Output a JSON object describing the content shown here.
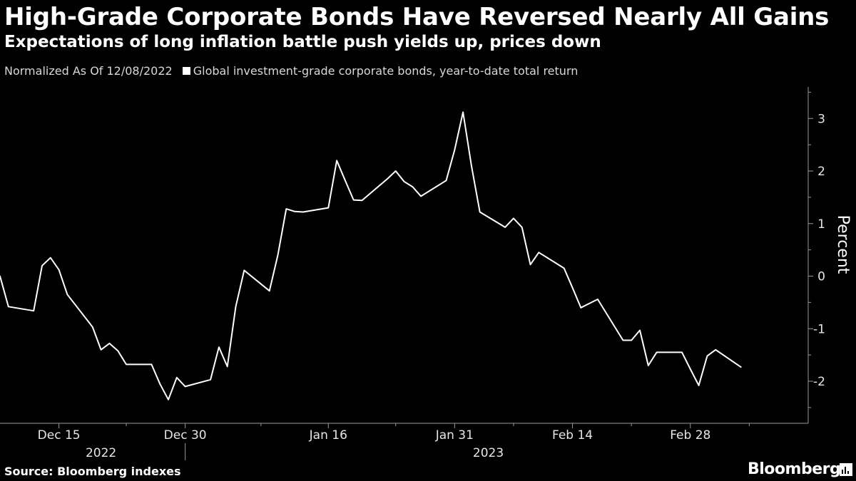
{
  "header": {
    "title": "High-Grade Corporate Bonds Have Reversed Nearly All Gains",
    "subtitle": "Expectations of long inflation battle push yields up, prices down"
  },
  "legend": {
    "note": "Normalized As Of 12/08/2022",
    "series_label": "Global investment-grade corporate bonds, year-to-date total return"
  },
  "footer": {
    "source": "Source: Bloomberg indexes",
    "brand": "Bloomberg"
  },
  "colors": {
    "background": "#000000",
    "line": "#ffffff",
    "text": "#ffffff",
    "muted": "#d8d8d8"
  },
  "chart_data": {
    "type": "line",
    "title": "High-Grade Corporate Bonds Have Reversed Nearly All Gains",
    "subtitle": "Expectations of long inflation battle push yields up, prices down",
    "ylabel": "Percent",
    "xlabel": "",
    "ylim": [
      -2.8,
      3.6
    ],
    "xlim": [
      "2022-12-08",
      "2023-03-14"
    ],
    "y_ticks": [
      -2,
      -1,
      0,
      1,
      2,
      3
    ],
    "x_ticks": [
      {
        "date": "2022-12-15",
        "label": "Dec 15"
      },
      {
        "date": "2022-12-30",
        "label": "Dec 30"
      },
      {
        "date": "2023-01-16",
        "label": "Jan 16"
      },
      {
        "date": "2023-01-31",
        "label": "Jan 31"
      },
      {
        "date": "2023-02-14",
        "label": "Feb 14"
      },
      {
        "date": "2023-02-28",
        "label": "Feb 28"
      }
    ],
    "minor_x_ticks": [
      "2022-12-23",
      "2023-01-08",
      "2023-01-24",
      "2023-02-07",
      "2023-02-21",
      "2023-03-07"
    ],
    "years": [
      {
        "label": "2022",
        "center": "2022-12-20"
      },
      {
        "label": "2023",
        "center": "2023-02-04"
      }
    ],
    "year_divider": "2022-12-30",
    "grid": false,
    "legend_position": "top-left",
    "series": [
      {
        "name": "Global investment-grade corporate bonds, year-to-date total return",
        "color": "#ffffff",
        "points": [
          [
            "2022-12-08",
            0.0
          ],
          [
            "2022-12-09",
            -0.58
          ],
          [
            "2022-12-12",
            -0.66
          ],
          [
            "2022-12-13",
            0.2
          ],
          [
            "2022-12-14",
            0.35
          ],
          [
            "2022-12-15",
            0.12
          ],
          [
            "2022-12-16",
            -0.35
          ],
          [
            "2022-12-19",
            -0.97
          ],
          [
            "2022-12-20",
            -1.4
          ],
          [
            "2022-12-21",
            -1.28
          ],
          [
            "2022-12-22",
            -1.42
          ],
          [
            "2022-12-23",
            -1.68
          ],
          [
            "2022-12-26",
            -1.68
          ],
          [
            "2022-12-27",
            -2.05
          ],
          [
            "2022-12-28",
            -2.35
          ],
          [
            "2022-12-29",
            -1.93
          ],
          [
            "2022-12-30",
            -2.1
          ],
          [
            "2023-01-02",
            -1.97
          ],
          [
            "2023-01-03",
            -1.35
          ],
          [
            "2023-01-04",
            -1.72
          ],
          [
            "2023-01-05",
            -0.58
          ],
          [
            "2023-01-06",
            0.11
          ],
          [
            "2023-01-09",
            -0.28
          ],
          [
            "2023-01-10",
            0.4
          ],
          [
            "2023-01-11",
            1.28
          ],
          [
            "2023-01-12",
            1.23
          ],
          [
            "2023-01-13",
            1.22
          ],
          [
            "2023-01-16",
            1.3
          ],
          [
            "2023-01-17",
            2.2
          ],
          [
            "2023-01-18",
            1.82
          ],
          [
            "2023-01-19",
            1.45
          ],
          [
            "2023-01-20",
            1.44
          ],
          [
            "2023-01-23",
            1.85
          ],
          [
            "2023-01-24",
            2.0
          ],
          [
            "2023-01-25",
            1.8
          ],
          [
            "2023-01-26",
            1.7
          ],
          [
            "2023-01-27",
            1.52
          ],
          [
            "2023-01-30",
            1.82
          ],
          [
            "2023-01-31",
            2.4
          ],
          [
            "2023-02-01",
            3.12
          ],
          [
            "2023-02-02",
            2.1
          ],
          [
            "2023-02-03",
            1.22
          ],
          [
            "2023-02-06",
            0.93
          ],
          [
            "2023-02-07",
            1.1
          ],
          [
            "2023-02-08",
            0.93
          ],
          [
            "2023-02-09",
            0.22
          ],
          [
            "2023-02-10",
            0.45
          ],
          [
            "2023-02-13",
            0.15
          ],
          [
            "2023-02-14",
            -0.22
          ],
          [
            "2023-02-15",
            -0.6
          ],
          [
            "2023-02-16",
            -0.52
          ],
          [
            "2023-02-17",
            -0.44
          ],
          [
            "2023-02-20",
            -1.22
          ],
          [
            "2023-02-21",
            -1.22
          ],
          [
            "2023-02-22",
            -1.03
          ],
          [
            "2023-02-23",
            -1.7
          ],
          [
            "2023-02-24",
            -1.45
          ],
          [
            "2023-02-27",
            -1.45
          ],
          [
            "2023-02-28",
            -1.77
          ],
          [
            "2023-03-01",
            -2.08
          ],
          [
            "2023-03-02",
            -1.52
          ],
          [
            "2023-03-03",
            -1.4
          ],
          [
            "2023-03-06",
            -1.73
          ]
        ]
      }
    ]
  }
}
